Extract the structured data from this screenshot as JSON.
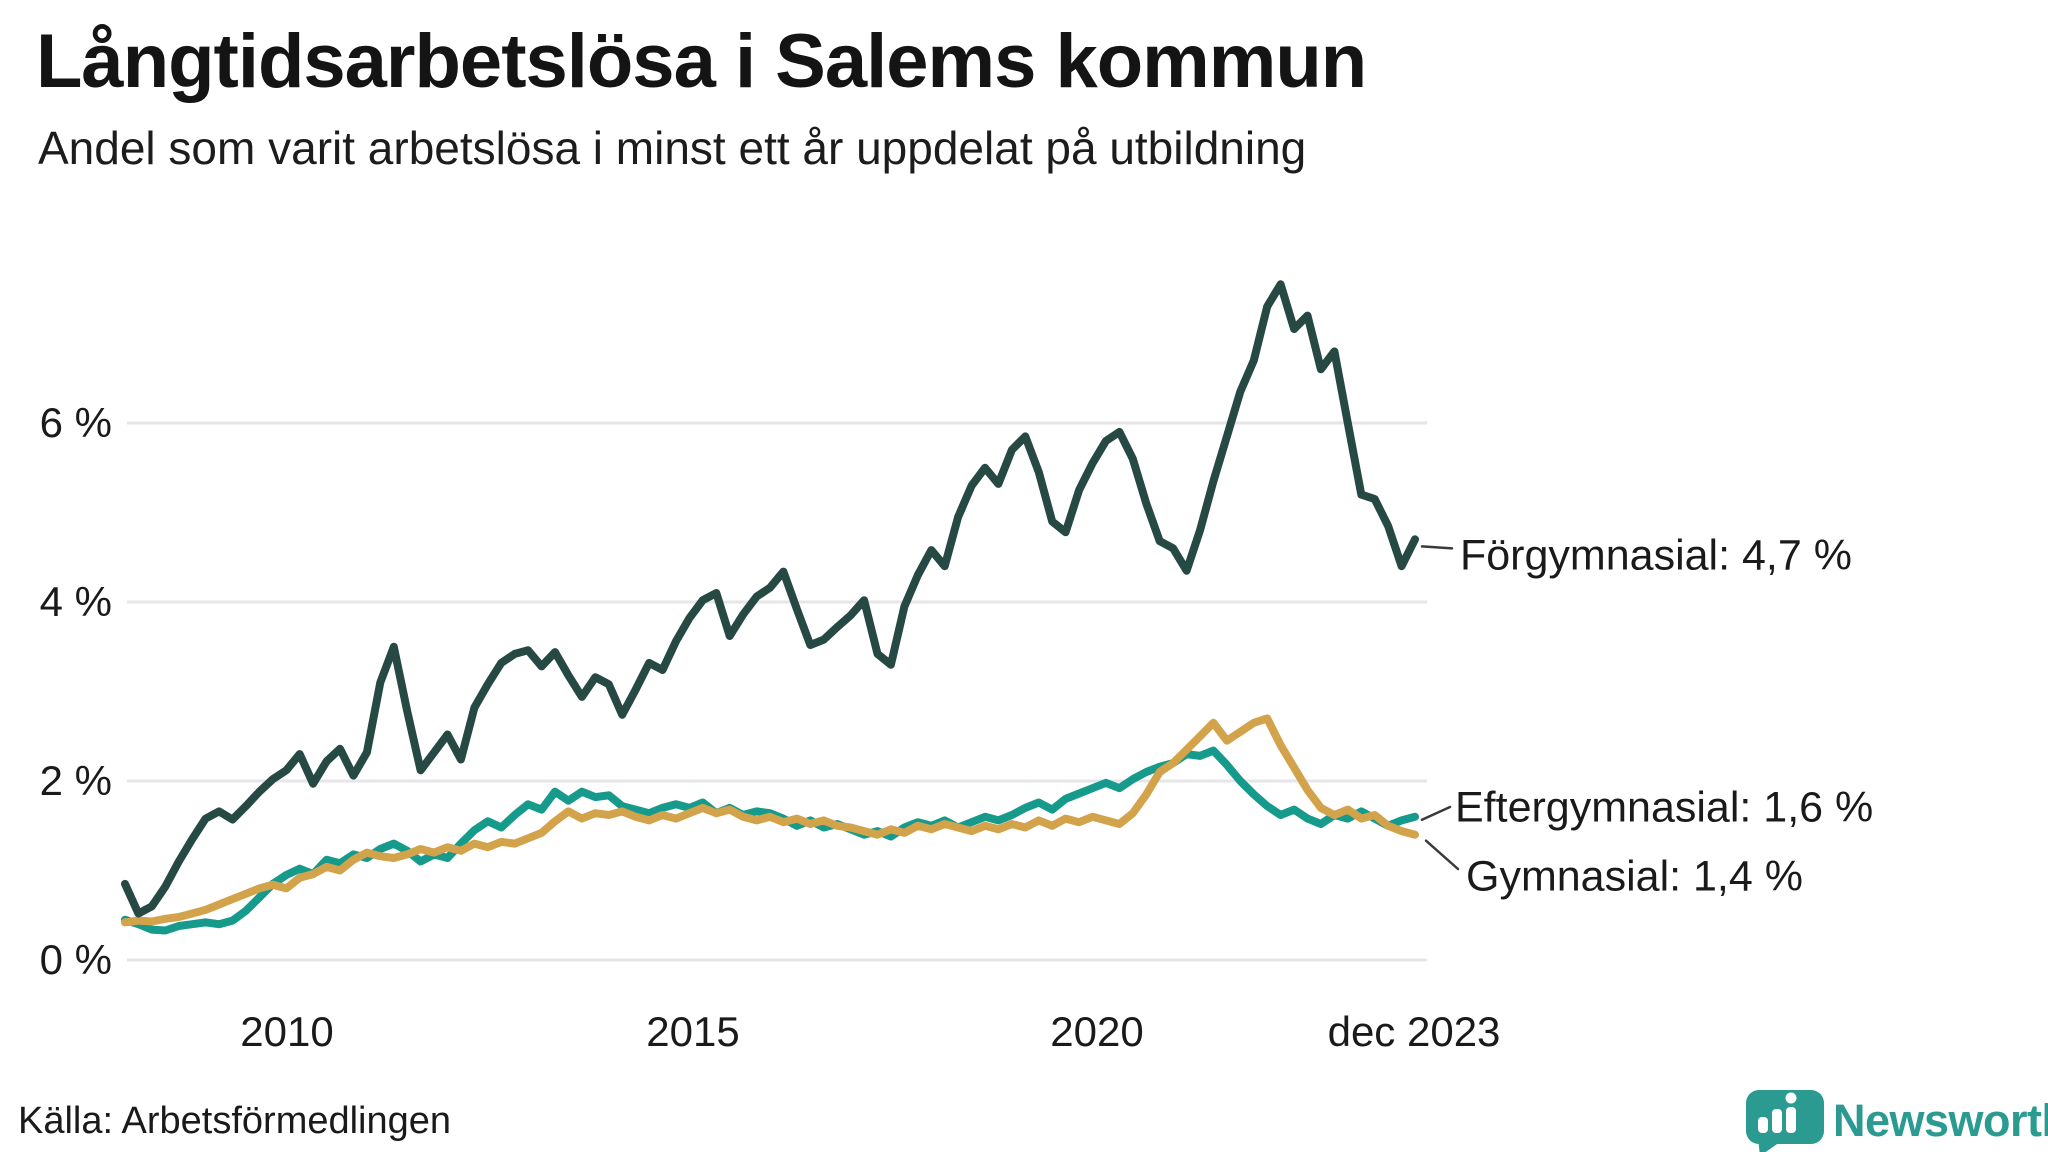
{
  "header": {
    "title": "Långtidsarbetslösa i Salems kommun",
    "subtitle": "Andel som varit arbetslösa i minst ett år uppdelat på utbildning"
  },
  "chart_data": {
    "type": "line",
    "title": "Långtidsarbetslösa i Salems kommun",
    "subtitle": "Andel som varit arbetslösa i minst ett år uppdelat på utbildning",
    "x_unit": "time, monthly values from 2008 to dec 2023 (values every 2 months)",
    "x_start": 2008.0,
    "x_end": 2023.92,
    "ylim": [
      0,
      7.8
    ],
    "grid": "horizontal",
    "legend_position": "end-of-line labels, right side",
    "yticks": [
      {
        "value": 6,
        "label": "6 %"
      },
      {
        "value": 4,
        "label": "4 %"
      },
      {
        "value": 2,
        "label": "2 %"
      },
      {
        "value": 0,
        "label": "0 %"
      }
    ],
    "xticks": [
      {
        "value": 2010,
        "label": "2010"
      },
      {
        "value": 2015,
        "label": "2015"
      },
      {
        "value": 2020,
        "label": "2020"
      },
      {
        "value": 2023.92,
        "label": "dec 2023"
      }
    ],
    "series": [
      {
        "name": "Förgymnasial",
        "end_label": "Förgymnasial: 4,7 %",
        "end_value_pct": 4.7,
        "color": "#264a43",
        "values": [
          0.85,
          0.52,
          0.6,
          0.82,
          1.1,
          1.35,
          1.58,
          1.66,
          1.57,
          1.72,
          1.88,
          2.02,
          2.12,
          2.3,
          1.97,
          2.22,
          2.36,
          2.06,
          2.32,
          3.1,
          3.5,
          2.78,
          2.12,
          2.32,
          2.52,
          2.24,
          2.82,
          3.08,
          3.32,
          3.42,
          3.46,
          3.28,
          3.44,
          3.18,
          2.94,
          3.16,
          3.08,
          2.74,
          3.02,
          3.32,
          3.24,
          3.56,
          3.82,
          4.02,
          4.1,
          3.62,
          3.86,
          4.06,
          4.16,
          4.34,
          3.92,
          3.52,
          3.58,
          3.72,
          3.85,
          4.02,
          3.42,
          3.3,
          3.95,
          4.3,
          4.58,
          4.4,
          4.95,
          5.3,
          5.5,
          5.32,
          5.7,
          5.85,
          5.45,
          4.9,
          4.78,
          5.25,
          5.55,
          5.8,
          5.9,
          5.6,
          5.1,
          4.68,
          4.6,
          4.35,
          4.8,
          5.35,
          5.85,
          6.35,
          6.7,
          7.3,
          7.55,
          7.05,
          7.2,
          6.6,
          6.8,
          6.0,
          5.2,
          5.15,
          4.85,
          4.4,
          4.7
        ]
      },
      {
        "name": "Eftergymnasial",
        "end_label": "Eftergymnasial: 1,6 %",
        "end_value_pct": 1.6,
        "color": "#169a8c",
        "values": [
          0.45,
          0.4,
          0.34,
          0.33,
          0.38,
          0.4,
          0.42,
          0.4,
          0.44,
          0.55,
          0.7,
          0.85,
          0.95,
          1.02,
          0.96,
          1.12,
          1.08,
          1.18,
          1.14,
          1.24,
          1.3,
          1.22,
          1.1,
          1.18,
          1.14,
          1.3,
          1.45,
          1.55,
          1.48,
          1.62,
          1.74,
          1.68,
          1.88,
          1.78,
          1.88,
          1.82,
          1.84,
          1.72,
          1.68,
          1.64,
          1.7,
          1.74,
          1.7,
          1.76,
          1.64,
          1.7,
          1.62,
          1.66,
          1.64,
          1.58,
          1.5,
          1.56,
          1.48,
          1.52,
          1.46,
          1.4,
          1.44,
          1.38,
          1.48,
          1.54,
          1.5,
          1.56,
          1.48,
          1.54,
          1.6,
          1.56,
          1.62,
          1.7,
          1.76,
          1.68,
          1.8,
          1.86,
          1.92,
          1.98,
          1.92,
          2.02,
          2.1,
          2.16,
          2.2,
          2.3,
          2.28,
          2.34,
          2.18,
          2.0,
          1.85,
          1.72,
          1.62,
          1.68,
          1.58,
          1.52,
          1.62,
          1.58,
          1.66,
          1.58,
          1.5,
          1.56,
          1.6
        ]
      },
      {
        "name": "Gymnasial",
        "end_label": "Gymnasial: 1,4 %",
        "end_value_pct": 1.4,
        "color": "#d3a34b",
        "values": [
          0.42,
          0.44,
          0.43,
          0.46,
          0.48,
          0.52,
          0.56,
          0.62,
          0.68,
          0.74,
          0.8,
          0.84,
          0.8,
          0.92,
          0.96,
          1.04,
          1.0,
          1.12,
          1.2,
          1.16,
          1.14,
          1.18,
          1.24,
          1.2,
          1.26,
          1.22,
          1.3,
          1.26,
          1.32,
          1.3,
          1.36,
          1.42,
          1.55,
          1.66,
          1.58,
          1.64,
          1.62,
          1.66,
          1.6,
          1.56,
          1.62,
          1.58,
          1.64,
          1.7,
          1.64,
          1.68,
          1.6,
          1.56,
          1.6,
          1.54,
          1.58,
          1.52,
          1.56,
          1.5,
          1.48,
          1.44,
          1.4,
          1.46,
          1.42,
          1.5,
          1.46,
          1.52,
          1.48,
          1.44,
          1.5,
          1.46,
          1.52,
          1.48,
          1.56,
          1.5,
          1.58,
          1.54,
          1.6,
          1.56,
          1.52,
          1.64,
          1.85,
          2.1,
          2.2,
          2.35,
          2.5,
          2.65,
          2.45,
          2.55,
          2.65,
          2.7,
          2.4,
          2.15,
          1.9,
          1.7,
          1.62,
          1.68,
          1.58,
          1.62,
          1.5,
          1.44,
          1.4
        ]
      }
    ],
    "colors": {
      "grid": "#e6e5e8",
      "connector": "#3a3a3a",
      "text": "#1a1a1a"
    }
  },
  "footer": {
    "source": "Källa: Arbetsförmedlingen",
    "logo_text": "Newsworthy",
    "logo_color": "#2b9a90"
  }
}
